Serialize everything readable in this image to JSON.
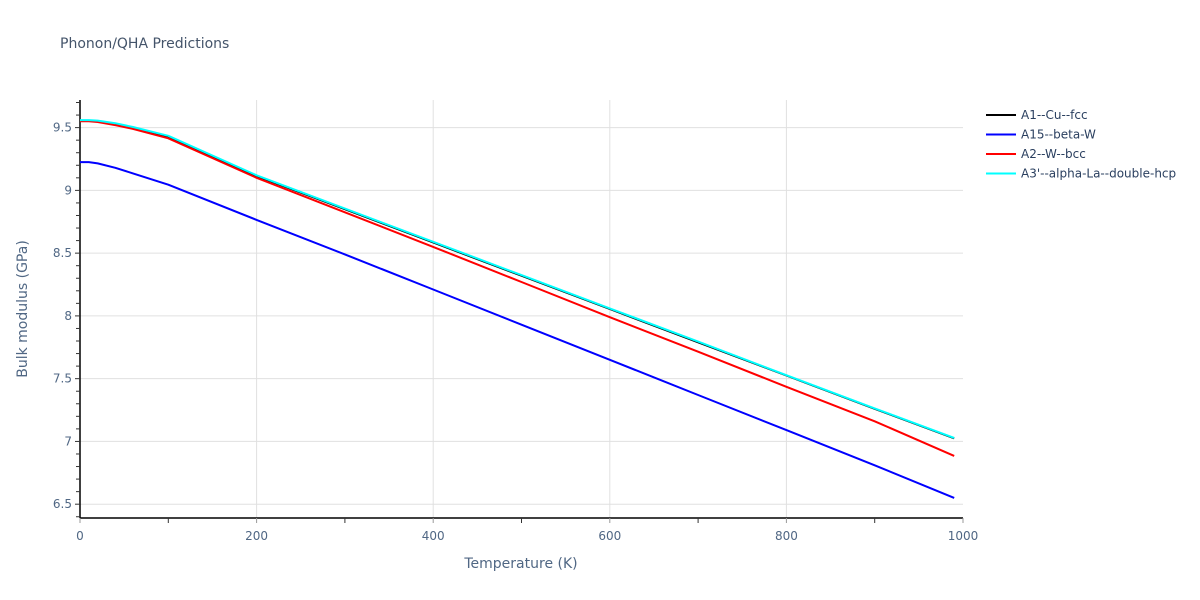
{
  "title": "Phonon/QHA Predictions",
  "chart_data": {
    "type": "line",
    "title": "Phonon/QHA Predictions",
    "xlabel": "Temperature (K)",
    "ylabel": "Bulk modulus (GPa)",
    "xlim": [
      0,
      1000
    ],
    "ylim": [
      6.39,
      9.72
    ],
    "x_ticks": [
      0,
      200,
      400,
      600,
      800,
      1000
    ],
    "x_tick_labels": [
      "0",
      "200",
      "400",
      "600",
      "800",
      "1000"
    ],
    "y_ticks": [
      6.5,
      7,
      7.5,
      8,
      8.5,
      9,
      9.5
    ],
    "y_tick_labels": [
      "6.5",
      "7",
      "7.5",
      "8",
      "8.5",
      "9",
      "9.5"
    ],
    "grid": true,
    "legend_position": "right",
    "x": [
      0,
      10,
      20,
      40,
      60,
      100,
      200,
      300,
      400,
      500,
      600,
      700,
      800,
      900,
      990
    ],
    "series": [
      {
        "name": "A1--Cu--fcc",
        "color": "#000000",
        "values": [
          9.556,
          9.556,
          9.552,
          9.53,
          9.5,
          9.43,
          9.115,
          8.85,
          8.585,
          8.32,
          8.055,
          7.79,
          7.525,
          7.26,
          7.025
        ]
      },
      {
        "name": "A15--beta-W",
        "color": "#0000ff",
        "values": [
          9.225,
          9.225,
          9.215,
          9.18,
          9.135,
          9.045,
          8.765,
          8.49,
          8.21,
          7.93,
          7.65,
          7.37,
          7.09,
          6.81,
          6.55
        ]
      },
      {
        "name": "A2--W--bcc",
        "color": "#ff0000",
        "values": [
          9.55,
          9.55,
          9.545,
          9.52,
          9.49,
          9.415,
          9.1,
          8.825,
          8.55,
          8.27,
          7.99,
          7.715,
          7.435,
          7.16,
          6.885
        ]
      },
      {
        "name": "A3'--alpha-La--double-hcp",
        "color": "#00ffff",
        "values": [
          9.56,
          9.56,
          9.556,
          9.535,
          9.505,
          9.435,
          9.12,
          8.855,
          8.59,
          8.325,
          8.06,
          7.795,
          7.528,
          7.263,
          7.028
        ]
      }
    ]
  },
  "legend": {
    "items": [
      {
        "label": "A1--Cu--fcc",
        "color": "#000000"
      },
      {
        "label": "A15--beta-W",
        "color": "#0000ff"
      },
      {
        "label": "A2--W--bcc",
        "color": "#ff0000"
      },
      {
        "label": "A3'--alpha-La--double-hcp",
        "color": "#00ffff"
      }
    ]
  }
}
